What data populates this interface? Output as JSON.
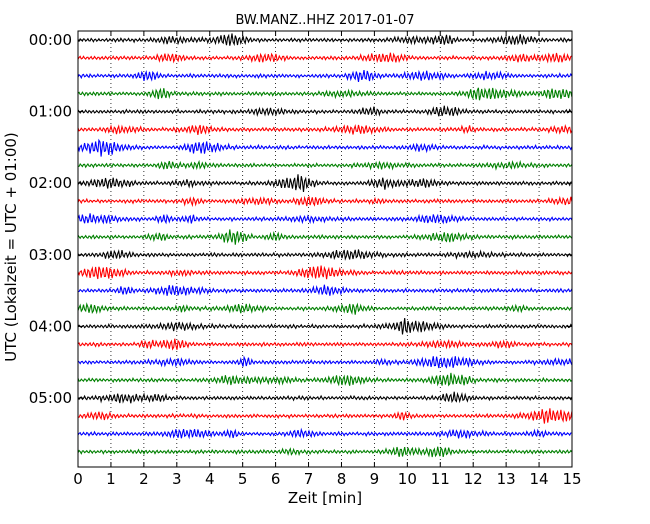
{
  "chart_data": {
    "type": "line",
    "title": "BW.MANZ..HHZ 2017-01-07",
    "xlabel": "Zeit  [min]",
    "ylabel": "UTC (Lokalzeit = UTC + 01:00)",
    "xlim": [
      0,
      15
    ],
    "x_ticks": [
      "0",
      "1",
      "2",
      "3",
      "4",
      "5",
      "6",
      "7",
      "8",
      "9",
      "10",
      "11",
      "12",
      "13",
      "14",
      "15"
    ],
    "y_ticks": [
      "00:00",
      "01:00",
      "02:00",
      "03:00",
      "04:00",
      "05:00"
    ],
    "trace_count": 24,
    "minutes_per_trace": 15,
    "color_cycle": [
      "#000000",
      "#ff0000",
      "#0000ff",
      "#008000"
    ],
    "grid": "vertical dotted at each minute",
    "legend": "none"
  }
}
